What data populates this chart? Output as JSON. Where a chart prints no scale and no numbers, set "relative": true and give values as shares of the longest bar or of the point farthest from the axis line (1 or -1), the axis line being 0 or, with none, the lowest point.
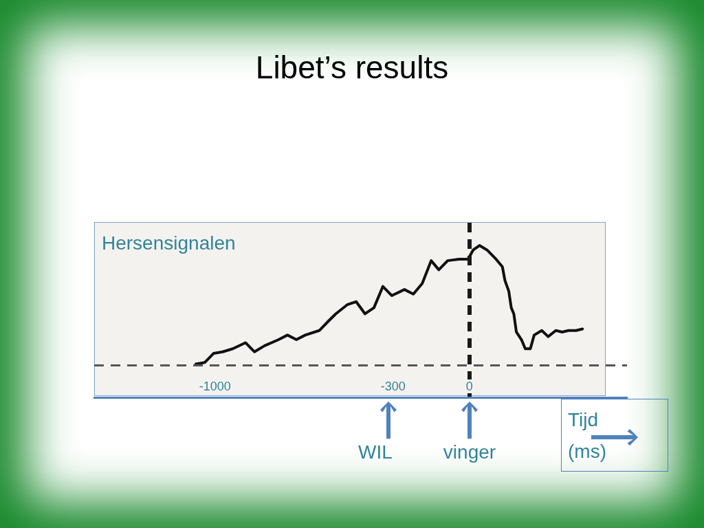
{
  "chart_data": {
    "type": "line",
    "title": "Libet’s results",
    "ylabel": "Hersensignalen",
    "xlabel": "Tijd (ms)",
    "relative": true,
    "color": "#111111",
    "x": [
      -1075,
      -1040,
      -1005,
      -970,
      -930,
      -880,
      -845,
      -805,
      -750,
      -715,
      -680,
      -645,
      -590,
      -555,
      -525,
      -480,
      -445,
      -410,
      -375,
      -340,
      -305,
      -255,
      -220,
      -185,
      -150,
      -120,
      -85,
      -40,
      -5,
      15,
      40,
      70,
      105,
      130,
      140,
      155,
      165,
      175,
      185,
      205,
      220,
      240,
      255,
      285,
      310,
      340,
      365,
      390,
      420,
      445
    ],
    "values": [
      0.22,
      0.23,
      0.29,
      0.3,
      0.32,
      0.36,
      0.3,
      0.34,
      0.38,
      0.41,
      0.38,
      0.41,
      0.44,
      0.5,
      0.55,
      0.61,
      0.63,
      0.55,
      0.59,
      0.73,
      0.67,
      0.71,
      0.68,
      0.75,
      0.9,
      0.84,
      0.9,
      0.91,
      0.91,
      0.97,
      1,
      0.97,
      0.91,
      0.86,
      0.77,
      0.7,
      0.59,
      0.55,
      0.43,
      0.38,
      0.32,
      0.32,
      0.41,
      0.44,
      0.4,
      0.44,
      0.43,
      0.44,
      0.44,
      0.45
    ],
    "xlim": [
      -1475,
      620
    ],
    "xticks": [
      -1000,
      -300,
      0
    ],
    "tick_labels": "x",
    "ref_lines": [
      {
        "axis": "y",
        "value": 0.21,
        "line_style": "dashed",
        "color": "#555555"
      },
      {
        "axis": "x",
        "value": 0,
        "line_style": "dashed",
        "color": "#1a1a1a"
      }
    ],
    "annotations": [
      "WIL",
      "vinger"
    ]
  }
}
